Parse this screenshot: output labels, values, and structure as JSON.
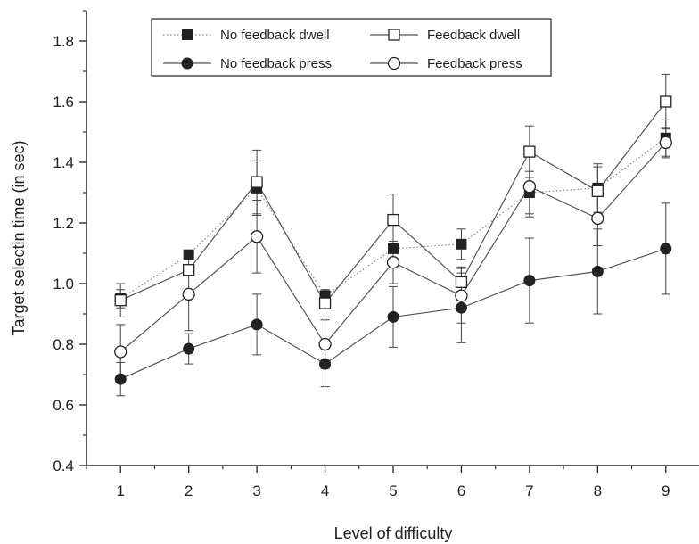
{
  "chart_data": {
    "type": "line",
    "xlabel": "Level of difficulty",
    "ylabel": "Target selectin time (in sec)",
    "xlim": [
      0.5,
      9.5
    ],
    "ylim": [
      0.4,
      1.9
    ],
    "x": [
      1,
      2,
      3,
      4,
      5,
      6,
      7,
      8,
      9
    ],
    "x_ticks": [
      "1",
      "2",
      "3",
      "4",
      "5",
      "6",
      "7",
      "8",
      "9"
    ],
    "y_ticks": [
      "0.4",
      "0.6",
      "0.8",
      "1.0",
      "1.2",
      "1.4",
      "1.6",
      "1.8"
    ],
    "legend_position": "top-left",
    "grid": false,
    "error_bars": true,
    "series": [
      {
        "name": "No feedback dwell",
        "marker": "filled-square",
        "line": "dotted",
        "values": [
          0.95,
          1.095,
          1.315,
          0.96,
          1.115,
          1.13,
          1.3,
          1.315,
          1.48
        ],
        "error": [
          0.03,
          0.0,
          0.09,
          0.02,
          0.0,
          0.05,
          0.07,
          0.08,
          0.06
        ]
      },
      {
        "name": "Feedback dwell",
        "marker": "open-square",
        "line": "solid",
        "values": [
          0.945,
          1.045,
          1.335,
          0.935,
          1.21,
          1.005,
          1.435,
          1.305,
          1.6
        ],
        "error": [
          0.055,
          0.0,
          0.105,
          0.045,
          0.085,
          0.05,
          0.085,
          0.08,
          0.09
        ]
      },
      {
        "name": "No feedback press",
        "marker": "filled-circle",
        "line": "solid",
        "values": [
          0.685,
          0.785,
          0.865,
          0.735,
          0.89,
          0.92,
          1.01,
          1.04,
          1.115
        ],
        "error": [
          0.055,
          0.05,
          0.1,
          0.075,
          0.1,
          0.115,
          0.14,
          0.14,
          0.15
        ]
      },
      {
        "name": "Feedback press",
        "marker": "open-circle",
        "line": "solid",
        "values": [
          0.775,
          0.965,
          1.155,
          0.8,
          1.07,
          0.96,
          1.32,
          1.215,
          1.465
        ],
        "error": [
          0.09,
          0.12,
          0.12,
          0.08,
          0.07,
          0.09,
          0.1,
          0.09,
          0.05
        ]
      }
    ]
  }
}
